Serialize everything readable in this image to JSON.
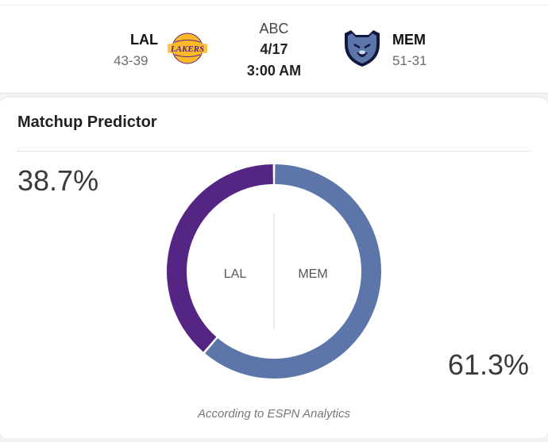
{
  "matchup": {
    "away": {
      "abbr": "LAL",
      "record": "43-39",
      "logo_icon": "lakers-logo-icon",
      "logo_text": "LAKERS",
      "color": "#552583",
      "accent": "#FDB927"
    },
    "home": {
      "abbr": "MEM",
      "record": "51-31",
      "logo_icon": "grizzlies-logo-icon",
      "color": "#5D76A9",
      "accent": "#12173F"
    },
    "network": "ABC",
    "date": "4/17",
    "time": "3:00 AM"
  },
  "predictor": {
    "title": "Matchup Predictor",
    "attribution": "According to ESPN Analytics",
    "left_pct": "38.7%",
    "right_pct": "61.3%"
  },
  "chart_data": {
    "type": "pie",
    "categories": [
      "LAL",
      "MEM"
    ],
    "values": [
      38.7,
      61.3
    ],
    "colors": [
      "#552583",
      "#5D76A9"
    ],
    "title": "Matchup Predictor"
  }
}
